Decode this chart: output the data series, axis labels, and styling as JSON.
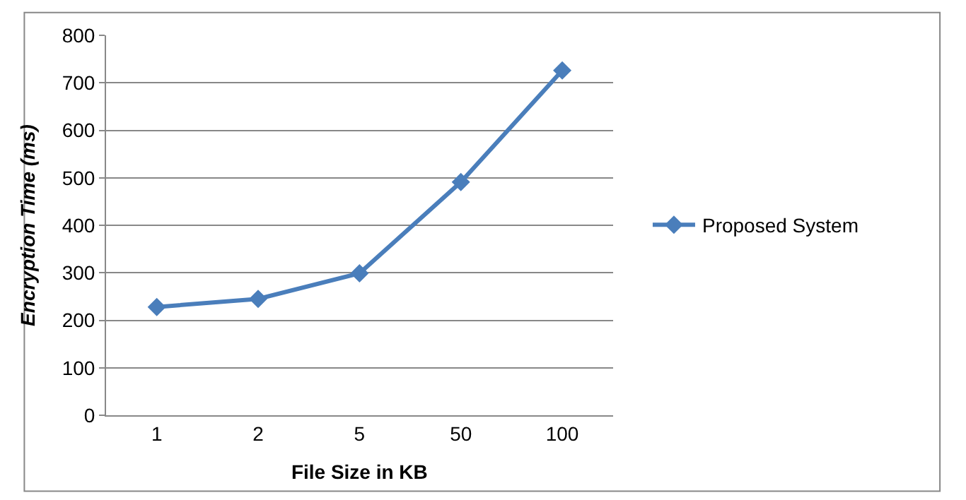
{
  "chart_data": {
    "type": "line",
    "xlabel": "File Size in KB",
    "ylabel": "Encryption Time (ms)",
    "categories": [
      "1",
      "2",
      "5",
      "50",
      "100"
    ],
    "series": [
      {
        "name": "Proposed System",
        "color": "#4a7ebb",
        "values": [
          228,
          245,
          299,
          491,
          726
        ]
      }
    ],
    "ylim": [
      0,
      800
    ],
    "yticks": [
      0,
      100,
      200,
      300,
      400,
      500,
      600,
      700,
      800
    ],
    "grid": "y",
    "legend": "right",
    "marker": "diamond",
    "line_style": "solid"
  }
}
